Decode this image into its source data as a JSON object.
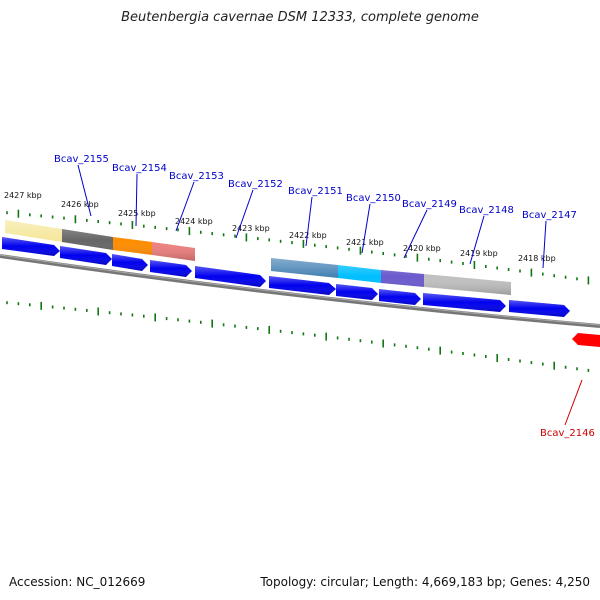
{
  "title": "Beutenbergia cavernae DSM 12333, complete genome",
  "footer": {
    "accession": "Accession: NC_012669",
    "summary": "Topology: circular; Length: 4,669,183 bp; Genes: 4,250"
  },
  "colors": {
    "forward_gene": "#0000ee",
    "reverse_gene": "#ff0000",
    "label_forward": "#0000cc",
    "label_reverse": "#cc0000",
    "backbone": "#777777",
    "tick": "#117711"
  },
  "ticks": [
    {
      "label": "2427 kbp"
    },
    {
      "label": "2426 kbp"
    },
    {
      "label": "2425 kbp"
    },
    {
      "label": "2424 kbp"
    },
    {
      "label": "2423 kbp"
    },
    {
      "label": "2422 kbp"
    },
    {
      "label": "2421 kbp"
    },
    {
      "label": "2420 kbp"
    },
    {
      "label": "2419 kbp"
    },
    {
      "label": "2418 kbp"
    }
  ],
  "gene_labels": [
    {
      "name": "Bcav_2155",
      "strand": "forward"
    },
    {
      "name": "Bcav_2154",
      "strand": "forward"
    },
    {
      "name": "Bcav_2153",
      "strand": "forward"
    },
    {
      "name": "Bcav_2152",
      "strand": "forward"
    },
    {
      "name": "Bcav_2151",
      "strand": "forward"
    },
    {
      "name": "Bcav_2150",
      "strand": "forward"
    },
    {
      "name": "Bcav_2149",
      "strand": "forward"
    },
    {
      "name": "Bcav_2148",
      "strand": "forward"
    },
    {
      "name": "Bcav_2147",
      "strand": "forward"
    },
    {
      "name": "Bcav_2146",
      "strand": "reverse"
    }
  ],
  "feature_colors": [
    "#f5e79a",
    "#666666",
    "#ff8c00",
    "#f08080",
    "#4682b4",
    "#00bfff",
    "#6a5acd",
    "#c0c0c0"
  ]
}
